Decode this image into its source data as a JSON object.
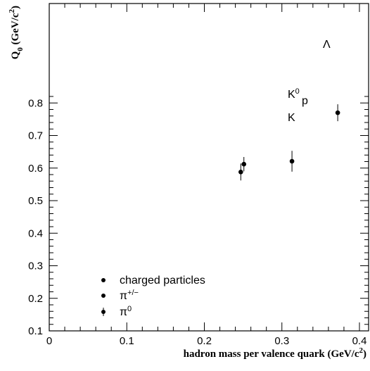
{
  "chart_data": {
    "type": "scatter",
    "title": "",
    "xlabel": {
      "main": "hadron mass per valence quark (GeV/c",
      "sup": "2",
      "tail": ")"
    },
    "ylabel": {
      "q": "Q",
      "sub": "0",
      "main": " (GeV/c",
      "sup": "2",
      "tail": ")"
    },
    "xlim": [
      0,
      0.42
    ],
    "ylim": [
      0.1,
      0.82
    ],
    "xticks": [
      "0",
      "0.1",
      "0.2",
      "0.3",
      "0.4"
    ],
    "yticks": [
      "0.1",
      "0.2",
      "0.3",
      "0.4",
      "0.5",
      "0.6",
      "0.7",
      "0.8"
    ],
    "points": [
      {
        "x": 0.247,
        "y": 0.588,
        "err": 0.026
      },
      {
        "x": 0.251,
        "y": 0.612,
        "err": 0.022
      },
      {
        "x": 0.313,
        "y": 0.621,
        "err": 0.032
      },
      {
        "x": 0.372,
        "y": 0.77,
        "err": 0.026
      }
    ],
    "annotations": [
      {
        "base": "K",
        "sup": "0"
      },
      {
        "base": "K",
        "sup": ""
      },
      {
        "base": "p",
        "sup": ""
      },
      {
        "base": "Λ",
        "sup": ""
      }
    ],
    "legend": [
      {
        "base": "charged particles",
        "sup": ""
      },
      {
        "base": "π",
        "sup": "+/−"
      },
      {
        "base": "π",
        "sup": "0"
      }
    ]
  }
}
